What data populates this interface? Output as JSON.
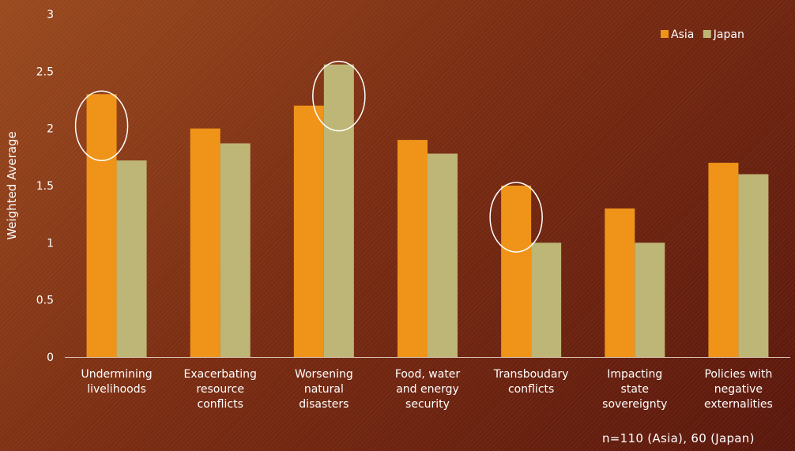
{
  "chart_data": {
    "type": "bar",
    "categories": [
      [
        "Undermining",
        "livelihoods"
      ],
      [
        "Exacerbating",
        "resource",
        "conflicts"
      ],
      [
        "Worsening",
        "natural",
        "disasters"
      ],
      [
        "Food, water",
        "and energy",
        "security"
      ],
      [
        "Transboudary",
        "conflicts"
      ],
      [
        "Impacting",
        "state",
        "sovereignty"
      ],
      [
        "Policies with",
        "negative",
        "externalities"
      ]
    ],
    "series": [
      {
        "name": "Asia",
        "color": "#ef9419",
        "values": [
          2.3,
          2.0,
          2.2,
          1.9,
          1.5,
          1.3,
          1.7
        ]
      },
      {
        "name": "Japan",
        "color": "#bdb676",
        "values": [
          1.72,
          1.87,
          2.56,
          1.78,
          1.0,
          1.0,
          1.6
        ]
      }
    ],
    "highlighted": [
      {
        "series": 0,
        "category": 0
      },
      {
        "series": 1,
        "category": 2
      },
      {
        "series": 0,
        "category": 4
      }
    ],
    "ylabel": "Weighted Average",
    "ylim": [
      0,
      3
    ],
    "yticks": [
      "0",
      "0.5",
      "1",
      "1.5",
      "2",
      "2.5",
      "3"
    ],
    "legend_position": "top-right",
    "grid": false
  },
  "footnote": "n=110 (Asia), 60 (Japan)"
}
